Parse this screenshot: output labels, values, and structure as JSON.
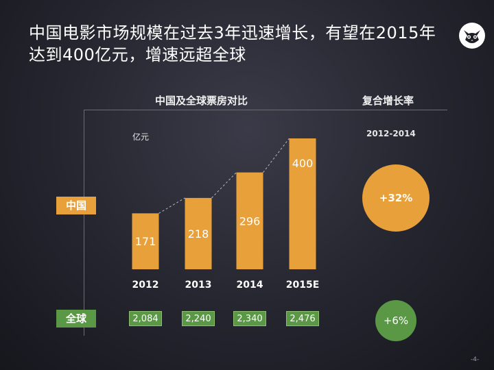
{
  "title": "中国电影市场规模在过去3年迅速增长，有望在2015年达到400亿元，增速远超全球",
  "headers": {
    "comparison": "中国及全球票房对比",
    "growth_rate": "复合增长率"
  },
  "unit": "亿元",
  "growth_period": "2012-2014",
  "row_labels": {
    "china": "中国",
    "global": "全球"
  },
  "growth": {
    "china": "+32%",
    "global": "+6%"
  },
  "page_number": "-4-",
  "colors": {
    "china": "#e8a03a",
    "global": "#5a9846",
    "background": "#24252e"
  },
  "chart_data": {
    "type": "bar",
    "categories": [
      "2012",
      "2013",
      "2014",
      "2015E"
    ],
    "series": [
      {
        "name": "中国",
        "values": [
          171,
          218,
          296,
          400
        ]
      }
    ],
    "ylim": [
      0,
      400
    ],
    "global_values": [
      "2,084",
      "2,240",
      "2,340",
      "2,476"
    ]
  }
}
